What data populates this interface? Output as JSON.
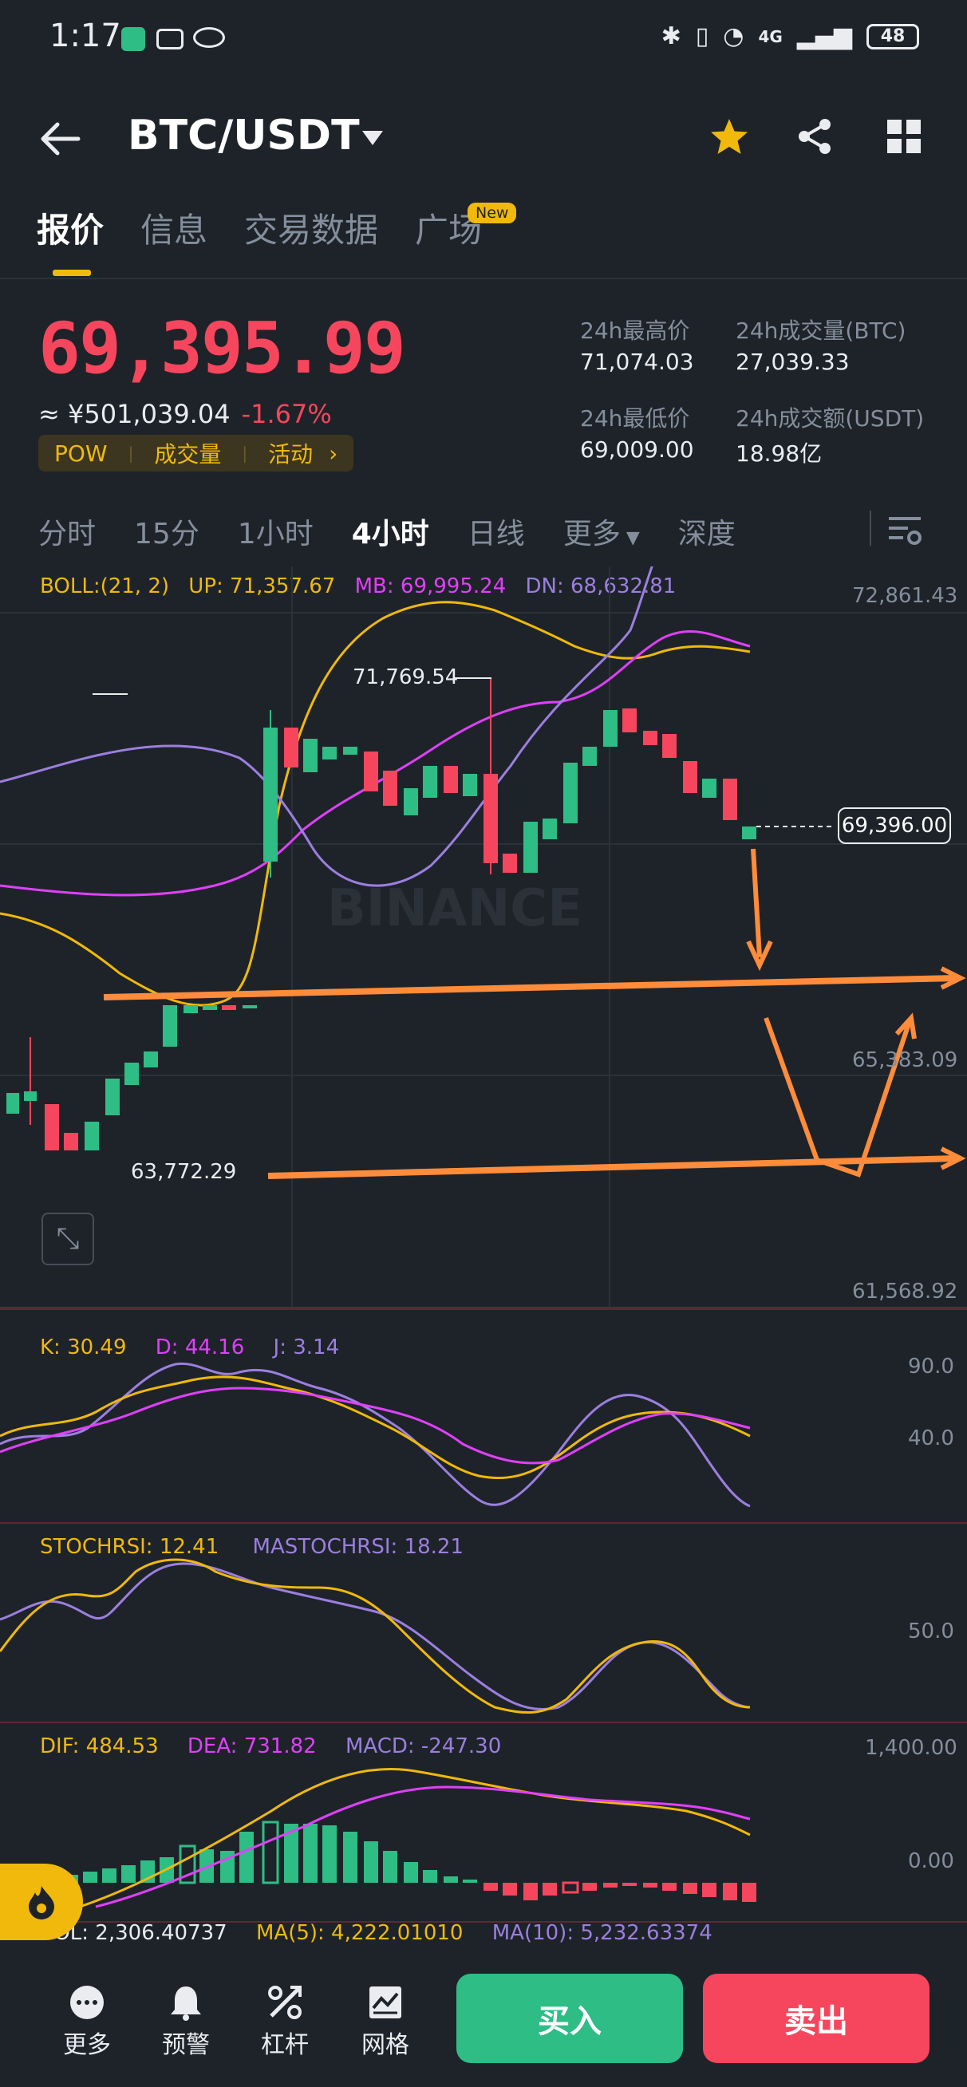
{
  "status_bar": {
    "time": "1:17",
    "network": "4G",
    "battery": "48"
  },
  "header": {
    "pair": "BTC/USDT"
  },
  "tabs": [
    {
      "label": "报价",
      "active": true
    },
    {
      "label": "信息"
    },
    {
      "label": "交易数据"
    },
    {
      "label": "广场",
      "badge": "New"
    }
  ],
  "ticker": {
    "last_price": "69,395.99",
    "cny_price": "≈ ¥501,039.04",
    "change": "-1.67%",
    "tags": [
      "POW",
      "成交量",
      "活动"
    ],
    "stats": {
      "high_label": "24h最高价",
      "high": "71,074.03",
      "vol_btc_label": "24h成交量(BTC)",
      "vol_btc": "27,039.33",
      "low_label": "24h最低价",
      "low": "69,009.00",
      "vol_usdt_label": "24h成交额(USDT)",
      "vol_usdt": "18.98亿"
    }
  },
  "timeframes": {
    "items": [
      "分时",
      "15分",
      "1小时",
      "4小时",
      "日线",
      "更多",
      "深度"
    ],
    "selected": "4小时"
  },
  "main_chart": {
    "boll": "BOLL:(21, 2)",
    "up": "UP: 71,357.67",
    "mb": "MB: 69,995.24",
    "dn": "DN: 68,632.81",
    "axis_top": "72,861.43",
    "axis_mid": "65,383.09",
    "axis_bot": "61,568.92",
    "high_marker": "71,769.54",
    "low_marker": "63,772.29",
    "current_price": "69,396.00",
    "watermark": "BINANCE"
  },
  "kdj": {
    "k": "K: 30.49",
    "d": "D: 44.16",
    "j": "J: 3.14",
    "axis_hi": "90.0",
    "axis_lo": "40.0"
  },
  "stochrsi": {
    "s": "STOCHRSI: 12.41",
    "ma": "MASTOCHRSI: 18.21",
    "axis": "50.0"
  },
  "macd": {
    "dif": "DIF: 484.53",
    "dea": "DEA: 731.82",
    "macd": "MACD: -247.30",
    "axis_hi": "1,400.00",
    "axis_zero": "0.00"
  },
  "volume": {
    "vol": "VOL: 2,306.40737",
    "ma5": "MA(5): 4,222.01010",
    "ma10": "MA(10): 5,232.63374"
  },
  "bottom_bar": {
    "items": [
      {
        "label": "更多",
        "icon": "more-icon"
      },
      {
        "label": "预警",
        "icon": "bell-icon"
      },
      {
        "label": "杠杆",
        "icon": "leverage-icon"
      },
      {
        "label": "网格",
        "icon": "grid-trading-icon"
      }
    ],
    "buy": "买入",
    "sell": "卖出"
  },
  "colors": {
    "up": "#2ebd85",
    "down": "#f6465d",
    "accent": "#f0b90b",
    "bg": "#1e2329"
  }
}
